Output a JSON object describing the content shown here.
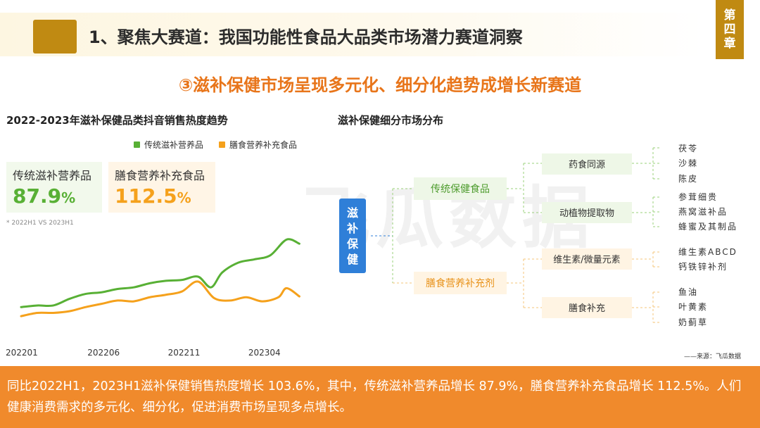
{
  "header": {
    "title": "1、聚焦大赛道：我国功能性食品大品类市场潜力赛道洞察",
    "chapter": "第四章"
  },
  "subtitle": "③滋补保健市场呈现多元化、细分化趋势成增长新赛道",
  "left_panel": {
    "title": "2022-2023年滋补保健品类抖音销售热度趋势",
    "legend": [
      "传统滋补营养品",
      "膳食营养补充食品"
    ],
    "stats": [
      {
        "label": "传统滋补营养品",
        "value": "87.9",
        "unit": "%"
      },
      {
        "label": "膳食营养补充食品",
        "value": "112.5",
        "unit": "%"
      }
    ],
    "compare_note": "* 2022H1 VS 2023H1"
  },
  "chart_data": {
    "type": "line",
    "title": "2022-2023年滋补保健品类抖音销售热度趋势",
    "xlabel": "",
    "ylabel": "",
    "x_tick_labels": [
      "202201",
      "202206",
      "202211",
      "202304"
    ],
    "x_tick_positions": [
      0,
      5,
      10,
      15
    ],
    "x_range": [
      0,
      17.5
    ],
    "ylim": [
      0,
      100
    ],
    "grid": false,
    "legend_position": "top",
    "series": [
      {
        "name": "传统滋补营养品",
        "color": "#58b035",
        "x": [
          0,
          1,
          2,
          3,
          4,
          5,
          6,
          7,
          8,
          9,
          10,
          11,
          11.8,
          12.5,
          13.5,
          14.5,
          15.5,
          16.5,
          17.3
        ],
        "values": [
          16,
          18,
          18,
          26,
          32,
          34,
          38,
          40,
          45,
          48,
          49,
          53,
          40,
          58,
          70,
          74,
          79,
          98,
          93
        ]
      },
      {
        "name": "膳食营养补充食品",
        "color": "#f5a11c",
        "x": [
          0,
          1,
          2,
          3,
          4,
          5,
          6,
          7,
          8,
          9,
          10,
          11,
          12,
          13,
          14,
          15,
          16,
          16.5,
          17.3
        ],
        "values": [
          5,
          9,
          9,
          11,
          16,
          20,
          24,
          23,
          28,
          31,
          35,
          47,
          27,
          24,
          28,
          23,
          28,
          39,
          29
        ]
      }
    ]
  },
  "right_panel": {
    "title": "滋补保健细分市场分布",
    "root": "滋补保健",
    "branches": [
      {
        "label": "传统保健食品",
        "children": [
          {
            "label": "药食同源",
            "leaves": [
              "茯苓",
              "沙棘",
              "陈皮"
            ]
          },
          {
            "label": "动植物提取物",
            "leaves": [
              "参茸细贵",
              "燕窝滋补品",
              "蜂蜜及其制品"
            ]
          }
        ]
      },
      {
        "label": "膳食营养补充剂",
        "children": [
          {
            "label": "维生素/微量元素",
            "leaves": [
              "维生素ABCD",
              "钙铁锌补剂"
            ]
          },
          {
            "label": "膳食补充",
            "leaves": [
              "鱼油",
              "叶黄素",
              "奶蓟草"
            ]
          }
        ]
      }
    ]
  },
  "source_note": "——来源：飞瓜数据",
  "watermark": "飞瓜数据",
  "bottom_text": "同比2022H1，2023H1滋补保健销售热度增长 103.6%，其中，传统滋补营养品增长 87.9%，膳食营养补充食品增长 112.5%。人们健康消费需求的多元化、细分化，促进消费市场呈现多点增长。",
  "colors": {
    "accent_gold": "#c08a12",
    "accent_orange": "#f08a2c",
    "green": "#58b035",
    "orange_line": "#f5a11c",
    "root_blue": "#2f7fd8"
  }
}
